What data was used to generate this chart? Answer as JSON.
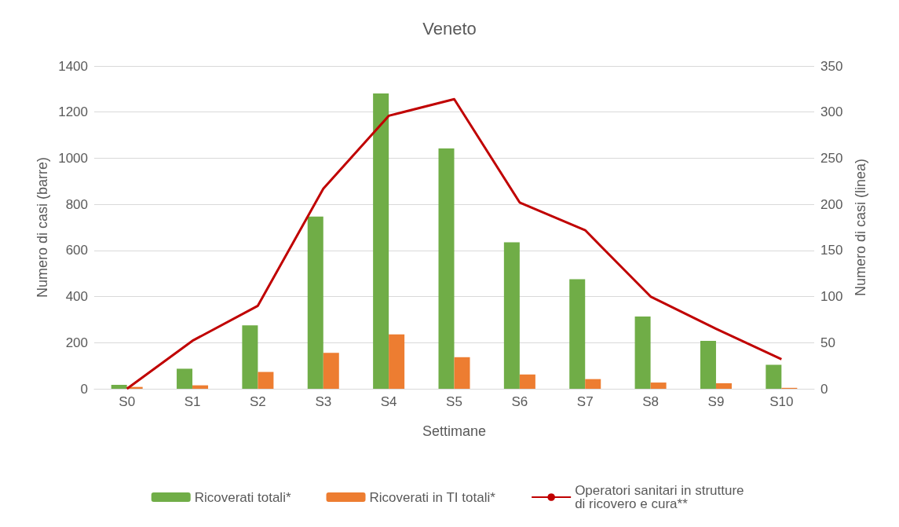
{
  "chart_data": {
    "type": "bar",
    "title": "Veneto",
    "xlabel": "Settimane",
    "ylabel": "Numero di casi (barre)",
    "y2label": "Numero di casi (linea)",
    "categories": [
      "S0",
      "S1",
      "S2",
      "S3",
      "S4",
      "S5",
      "S6",
      "S7",
      "S8",
      "S9",
      "S10"
    ],
    "series": [
      {
        "name": "Ricoverati totali*",
        "color": "#70ad47",
        "values": [
          17,
          87,
          275,
          747,
          1281,
          1042,
          635,
          475,
          313,
          208,
          104
        ]
      },
      {
        "name": "Ricoverati in TI totali*",
        "color": "#ed7d31",
        "values": [
          8,
          15,
          73,
          156,
          236,
          137,
          62,
          42,
          27,
          24,
          4
        ]
      },
      {
        "name": "Operatori sanitari in strutture di ricovero e cura**",
        "type": "line",
        "axis": "y2",
        "color": "#c00000",
        "values": [
          0,
          52,
          90,
          217,
          296,
          314,
          202,
          172,
          100,
          65,
          32
        ]
      }
    ],
    "ylim": [
      0,
      1400
    ],
    "yticks": [
      0,
      200,
      400,
      600,
      800,
      1000,
      1200,
      1400
    ],
    "y2lim": [
      0,
      350
    ],
    "y2ticks": [
      0,
      50,
      100,
      150,
      200,
      250,
      300,
      350
    ],
    "grid": "y",
    "legend": "bottom",
    "marker": "none"
  }
}
